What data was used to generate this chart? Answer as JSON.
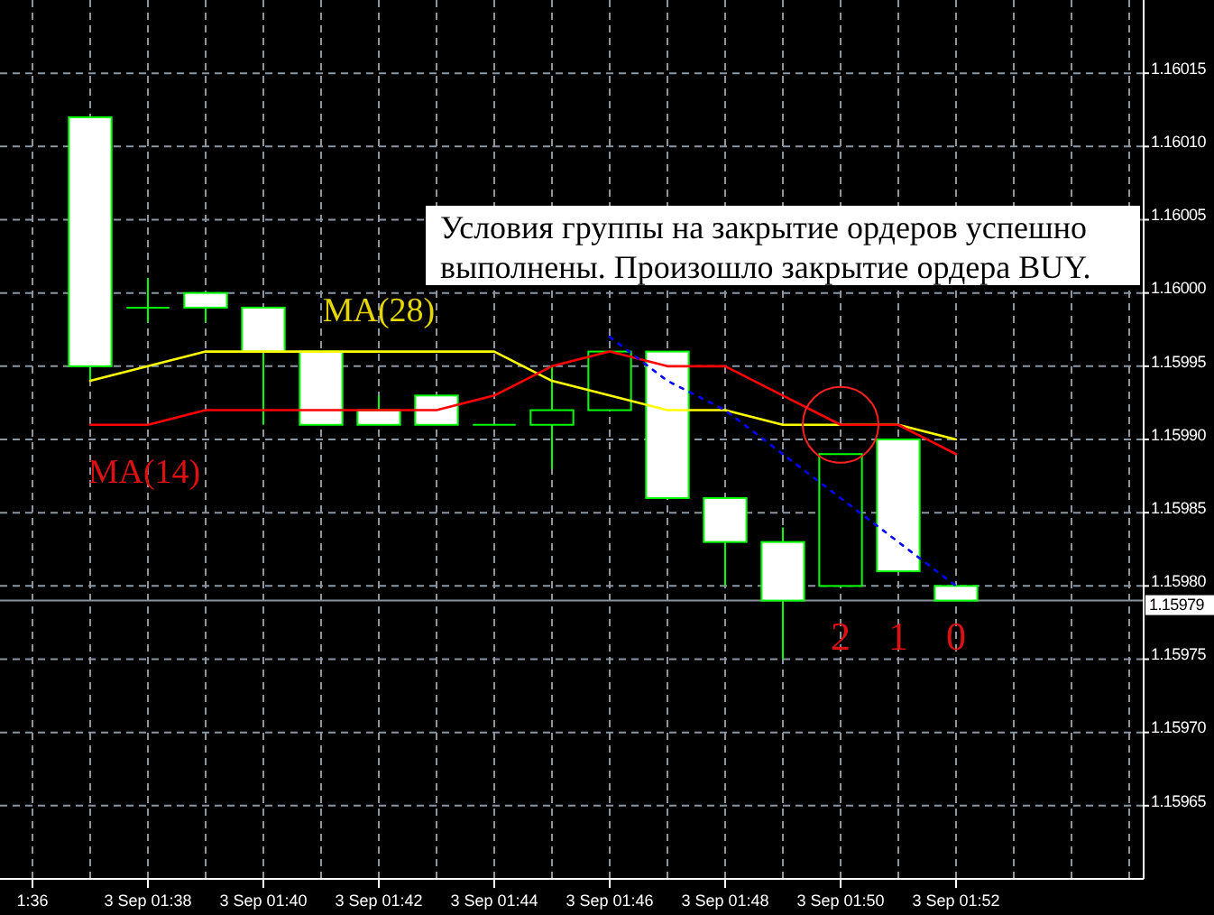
{
  "chart_data": {
    "type": "candlestick",
    "categories": [
      "1:36",
      null,
      "3 Sep 01:38",
      null,
      "3 Sep 01:40",
      null,
      "3 Sep 01:42",
      null,
      "3 Sep 01:44",
      null,
      "3 Sep 01:46",
      null,
      "3 Sep 01:48",
      null,
      "3 Sep 01:50",
      null,
      "3 Sep 01:52",
      null,
      null,
      null
    ],
    "ohlc": [
      null,
      [
        1.16012,
        1.16012,
        1.15994,
        1.15995
      ],
      [
        1.15999,
        1.16001,
        1.15998,
        1.15999
      ],
      [
        1.16,
        1.16,
        1.15998,
        1.15999
      ],
      [
        1.15999,
        1.15999,
        1.15991,
        1.15996
      ],
      [
        1.15996,
        1.15996,
        1.15991,
        1.15991
      ],
      [
        1.15992,
        1.15993,
        1.15991,
        1.15991
      ],
      [
        1.15993,
        1.15993,
        1.15991,
        1.15991
      ],
      [
        1.15991,
        1.15991,
        1.15991,
        1.15991
      ],
      [
        1.15991,
        1.15995,
        1.15988,
        1.15992
      ],
      [
        1.15992,
        1.15996,
        1.15992,
        1.15996
      ],
      [
        1.15996,
        1.15996,
        1.15986,
        1.15986
      ],
      [
        1.15986,
        1.15986,
        1.1598,
        1.15983
      ],
      [
        1.15983,
        1.15984,
        1.15975,
        1.15979
      ],
      [
        1.1598,
        1.15989,
        1.1598,
        1.15989
      ],
      [
        1.1599,
        1.1599,
        1.15981,
        1.15981
      ],
      [
        1.1598,
        1.1598,
        1.15979,
        1.15979
      ],
      null,
      null,
      null
    ],
    "color": "#00ff00",
    "series": [
      {
        "name": "MA(28)",
        "type": "line",
        "color": "#ffff00",
        "values": [
          null,
          1.15994,
          1.15995,
          1.15996,
          1.15996,
          1.15996,
          1.15996,
          1.15996,
          1.15996,
          1.15994,
          1.15993,
          1.15992,
          1.15992,
          1.15991,
          1.15991,
          1.15991,
          1.1599,
          null,
          null,
          null
        ]
      },
      {
        "name": "MA(14)",
        "type": "line",
        "color": "#ff0000",
        "values": [
          null,
          1.15991,
          1.15991,
          1.15992,
          1.15992,
          1.15992,
          1.15992,
          1.15992,
          1.15993,
          1.15995,
          1.15996,
          1.15995,
          1.15995,
          1.15993,
          1.15991,
          1.15991,
          1.15989,
          null,
          null,
          null
        ]
      },
      {
        "type": "line",
        "color": "#0000ff",
        "line_style": "dotted",
        "values": [
          null,
          null,
          null,
          null,
          null,
          null,
          null,
          null,
          null,
          null,
          1.15997,
          1.15994,
          1.15992,
          1.15989,
          1.15986,
          1.15983,
          1.1598,
          null,
          null,
          null
        ]
      }
    ],
    "ylim": [
      1.1596,
      1.1602
    ],
    "yticks": [
      1.15965,
      {
        "value": 1.1597,
        "label": "1.15970"
      },
      1.15975,
      {
        "value": 1.1598,
        "label": "1.15980"
      },
      1.15985,
      {
        "value": 1.1599,
        "label": "1.15990"
      },
      1.15995,
      {
        "value": 1.16,
        "label": "1.16000"
      },
      1.16005,
      {
        "value": 1.1601,
        "label": "1.16010"
      },
      1.16015
    ],
    "grid": true,
    "ref_lines": [
      {
        "axis": "y",
        "value": 1.15979,
        "label": "1.15979",
        "color": "#8a94a0"
      }
    ],
    "annotations": [
      "Условия группы на закрытие ордеров успешно выполнены. Произошло закрытие ордера BUY.",
      "2",
      "1",
      "0"
    ]
  }
}
